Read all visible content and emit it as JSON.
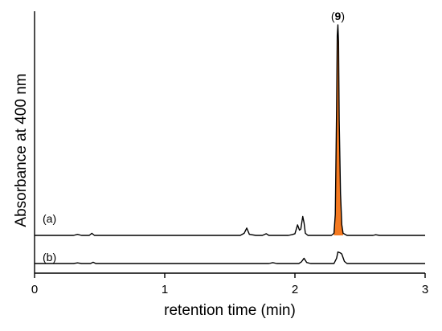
{
  "chart_data": {
    "type": "line",
    "xlabel": "retention time (min)",
    "ylabel": "Absorbance at 400 nm",
    "xlim": [
      0,
      3
    ],
    "x_ticks": [
      "0",
      "1",
      "2",
      "3"
    ],
    "y_ticks": [],
    "grid": false,
    "highlight_color": "#f47920",
    "peak_label": {
      "prefix": "(",
      "number": "9",
      "suffix": ")"
    },
    "annotated_peak_x": 2.33,
    "series": [
      {
        "name": "(a)",
        "baseline": 0,
        "highlight_range": [
          2.3,
          2.37
        ],
        "points": [
          [
            0.0,
            0.0
          ],
          [
            0.3,
            0.0
          ],
          [
            0.33,
            0.005
          ],
          [
            0.36,
            0.0
          ],
          [
            0.42,
            0.0
          ],
          [
            0.44,
            0.01
          ],
          [
            0.46,
            0.0
          ],
          [
            1.0,
            0.0
          ],
          [
            1.58,
            0.0
          ],
          [
            1.61,
            0.01
          ],
          [
            1.63,
            0.035
          ],
          [
            1.65,
            0.005
          ],
          [
            1.7,
            0.0
          ],
          [
            1.75,
            0.0
          ],
          [
            1.78,
            0.008
          ],
          [
            1.8,
            0.0
          ],
          [
            1.95,
            0.0
          ],
          [
            1.98,
            0.004
          ],
          [
            2.0,
            0.008
          ],
          [
            2.02,
            0.05
          ],
          [
            2.035,
            0.025
          ],
          [
            2.045,
            0.03
          ],
          [
            2.06,
            0.09
          ],
          [
            2.07,
            0.06
          ],
          [
            2.08,
            0.01
          ],
          [
            2.1,
            0.0
          ],
          [
            2.28,
            0.0
          ],
          [
            2.3,
            0.01
          ],
          [
            2.31,
            0.1
          ],
          [
            2.32,
            0.6
          ],
          [
            2.325,
            0.95
          ],
          [
            2.33,
            1.0
          ],
          [
            2.335,
            0.92
          ],
          [
            2.34,
            0.55
          ],
          [
            2.35,
            0.2
          ],
          [
            2.36,
            0.05
          ],
          [
            2.37,
            0.01
          ],
          [
            2.4,
            0.0
          ],
          [
            2.6,
            0.0
          ],
          [
            2.62,
            0.003
          ],
          [
            2.65,
            0.0
          ],
          [
            3.0,
            0.0
          ]
        ]
      },
      {
        "name": "(b)",
        "baseline": 0,
        "points": [
          [
            0.0,
            0.0
          ],
          [
            0.3,
            0.0
          ],
          [
            0.33,
            0.003
          ],
          [
            0.36,
            0.0
          ],
          [
            0.43,
            0.0
          ],
          [
            0.45,
            0.006
          ],
          [
            0.47,
            0.0
          ],
          [
            1.0,
            0.0
          ],
          [
            1.8,
            0.0
          ],
          [
            1.83,
            0.004
          ],
          [
            1.86,
            0.0
          ],
          [
            2.03,
            0.0
          ],
          [
            2.05,
            0.008
          ],
          [
            2.07,
            0.025
          ],
          [
            2.09,
            0.005
          ],
          [
            2.12,
            0.0
          ],
          [
            2.3,
            0.0
          ],
          [
            2.32,
            0.025
          ],
          [
            2.33,
            0.055
          ],
          [
            2.35,
            0.05
          ],
          [
            2.36,
            0.045
          ],
          [
            2.38,
            0.01
          ],
          [
            2.4,
            0.0
          ],
          [
            2.6,
            0.0
          ],
          [
            3.0,
            0.0
          ]
        ]
      }
    ]
  }
}
